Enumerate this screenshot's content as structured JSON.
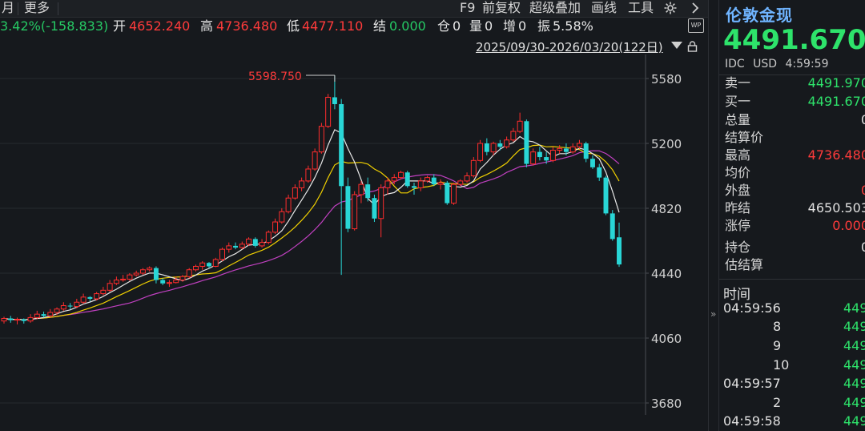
{
  "toolbar": {
    "left_item": "月",
    "more": "更多",
    "f9": "F9",
    "fuquan": "前复权",
    "overlay": "超级叠加",
    "draw": "画线",
    "tools": "工具"
  },
  "quote": {
    "change": "3.42%(-158.833)",
    "open_label": "开",
    "open": "4652.240",
    "high_label": "高",
    "high": "4736.480",
    "low_label": "低",
    "low": "4477.110",
    "settle_label": "结",
    "settle": "0.000",
    "pos_label": "仓",
    "pos": "0",
    "vol_label": "量",
    "vol": "0",
    "inc_label": "增",
    "inc": "0",
    "amp_label": "振",
    "amp": "5.58%"
  },
  "date_range": "2025/09/30-2026/03/20(122日)",
  "wp_badge": "WP",
  "chart_data": {
    "type": "candlestick",
    "period": "daily",
    "y_ticks": [
      5580,
      5200,
      4820,
      4440,
      4060,
      3680
    ],
    "ylim": [
      3680,
      5680
    ],
    "max_annotation": "5598.750",
    "colors": {
      "up": "#ff2d2d",
      "down": "#29d6d6",
      "ma5": "#e8e8e8",
      "ma10": "#f0d000",
      "ma20": "#c040c0",
      "grid": "#262a2f",
      "axis": "#4a4d52"
    },
    "candles": [
      [
        4160,
        4175,
        4145,
        4185
      ],
      [
        4175,
        4165,
        4150,
        4190
      ],
      [
        4165,
        4170,
        4140,
        4180
      ],
      [
        4170,
        4160,
        4145,
        4175
      ],
      [
        4160,
        4180,
        4150,
        4200
      ],
      [
        4180,
        4200,
        4170,
        4220
      ],
      [
        4200,
        4190,
        4180,
        4215
      ],
      [
        4190,
        4210,
        4180,
        4230
      ],
      [
        4210,
        4230,
        4195,
        4240
      ],
      [
        4230,
        4250,
        4220,
        4270
      ],
      [
        4250,
        4245,
        4230,
        4265
      ],
      [
        4245,
        4270,
        4235,
        4290
      ],
      [
        4270,
        4300,
        4260,
        4320
      ],
      [
        4300,
        4290,
        4275,
        4305
      ],
      [
        4290,
        4320,
        4280,
        4330
      ],
      [
        4320,
        4340,
        4310,
        4360
      ],
      [
        4340,
        4380,
        4330,
        4400
      ],
      [
        4380,
        4400,
        4370,
        4420
      ],
      [
        4400,
        4405,
        4390,
        4430
      ],
      [
        4405,
        4430,
        4395,
        4440
      ],
      [
        4430,
        4440,
        4420,
        4455
      ],
      [
        4440,
        4460,
        4430,
        4470
      ],
      [
        4460,
        4470,
        4450,
        4480
      ],
      [
        4470,
        4400,
        4380,
        4480
      ],
      [
        4400,
        4380,
        4370,
        4410
      ],
      [
        4380,
        4385,
        4360,
        4400
      ],
      [
        4385,
        4400,
        4380,
        4420
      ],
      [
        4400,
        4420,
        4390,
        4430
      ],
      [
        4420,
        4460,
        4410,
        4470
      ],
      [
        4460,
        4480,
        4450,
        4490
      ],
      [
        4480,
        4500,
        4460,
        4510
      ],
      [
        4500,
        4480,
        4470,
        4505
      ],
      [
        4480,
        4520,
        4475,
        4530
      ],
      [
        4520,
        4580,
        4510,
        4590
      ],
      [
        4580,
        4600,
        4560,
        4620
      ],
      [
        4600,
        4590,
        4580,
        4620
      ],
      [
        4590,
        4610,
        4580,
        4625
      ],
      [
        4610,
        4640,
        4600,
        4650
      ],
      [
        4640,
        4600,
        4590,
        4650
      ],
      [
        4600,
        4620,
        4590,
        4640
      ],
      [
        4620,
        4680,
        4610,
        4690
      ],
      [
        4680,
        4740,
        4670,
        4760
      ],
      [
        4740,
        4800,
        4730,
        4820
      ],
      [
        4800,
        4880,
        4790,
        4900
      ],
      [
        4880,
        4940,
        4870,
        4960
      ],
      [
        4940,
        4980,
        4920,
        5000
      ],
      [
        4980,
        5050,
        4970,
        5070
      ],
      [
        5050,
        5150,
        5040,
        5170
      ],
      [
        5150,
        5300,
        5140,
        5320
      ],
      [
        5300,
        5470,
        5290,
        5490
      ],
      [
        5470,
        5430,
        5400,
        5599
      ],
      [
        5430,
        4950,
        4430,
        5460
      ],
      [
        4950,
        4700,
        4680,
        5000
      ],
      [
        4700,
        4900,
        4690,
        4920
      ],
      [
        4900,
        4960,
        4850,
        4980
      ],
      [
        4960,
        4880,
        4860,
        5000
      ],
      [
        4880,
        4760,
        4740,
        4900
      ],
      [
        4760,
        4940,
        4650,
        4960
      ],
      [
        4940,
        4980,
        4900,
        5000
      ],
      [
        4980,
        5000,
        4960,
        5020
      ],
      [
        5000,
        5030,
        4990,
        5040
      ],
      [
        5030,
        4950,
        4940,
        5040
      ],
      [
        4950,
        4940,
        4900,
        4970
      ],
      [
        4940,
        4980,
        4920,
        5000
      ],
      [
        4980,
        5000,
        4970,
        5010
      ],
      [
        5000,
        4960,
        4950,
        5020
      ],
      [
        4960,
        4970,
        4930,
        4990
      ],
      [
        4970,
        4850,
        4840,
        4980
      ],
      [
        4850,
        4960,
        4840,
        4970
      ],
      [
        4960,
        4980,
        4950,
        4990
      ],
      [
        4980,
        5010,
        4970,
        5030
      ],
      [
        5010,
        5100,
        5000,
        5120
      ],
      [
        5100,
        5200,
        5090,
        5220
      ],
      [
        5200,
        5150,
        5130,
        5230
      ],
      [
        5150,
        5200,
        5130,
        5210
      ],
      [
        5200,
        5180,
        5160,
        5220
      ],
      [
        5180,
        5220,
        5170,
        5240
      ],
      [
        5220,
        5270,
        5210,
        5290
      ],
      [
        5270,
        5330,
        5260,
        5380
      ],
      [
        5330,
        5080,
        5060,
        5340
      ],
      [
        5080,
        5150,
        5070,
        5170
      ],
      [
        5150,
        5120,
        5100,
        5180
      ],
      [
        5120,
        5100,
        5080,
        5150
      ],
      [
        5100,
        5160,
        5090,
        5180
      ],
      [
        5160,
        5170,
        5140,
        5190
      ],
      [
        5170,
        5150,
        5130,
        5200
      ],
      [
        5150,
        5180,
        5140,
        5200
      ],
      [
        5180,
        5200,
        5170,
        5220
      ],
      [
        5200,
        5110,
        5090,
        5210
      ],
      [
        5110,
        5060,
        5050,
        5130
      ],
      [
        5060,
        5000,
        4980,
        5080
      ],
      [
        5000,
        4790,
        4780,
        5010
      ],
      [
        4790,
        4640,
        4630,
        4810
      ],
      [
        4650,
        4491,
        4477,
        4736
      ]
    ]
  },
  "panel": {
    "name": "伦敦金现",
    "price": "4491.670",
    "meta": [
      "IDC",
      "USD",
      "4:59:59"
    ],
    "rows": [
      {
        "label": "卖一",
        "value": "4491.970",
        "color": "#2ee36b"
      },
      {
        "label": "买一",
        "value": "4491.670",
        "color": "#2ee36b"
      },
      {
        "label": "总量",
        "value": "0",
        "color": "#e0e0e0"
      },
      {
        "label": "结算价",
        "value": "",
        "color": "#e0e0e0"
      },
      {
        "label": "最高",
        "value": "4736.480",
        "color": "#ff3b3b"
      },
      {
        "label": "均价",
        "value": "-",
        "color": "#e0e0e0"
      },
      {
        "label": "外盘",
        "value": "0",
        "color": "#ff3b3b"
      },
      {
        "label": "昨结",
        "value": "4650.503",
        "color": "#e0e0e0"
      },
      {
        "label": "涨停",
        "value": "0.000",
        "color": "#ff3b3b"
      },
      {
        "label": "持仓",
        "value": "0",
        "color": "#e0e0e0"
      },
      {
        "label": "估结算",
        "value": "",
        "color": "#e0e0e0"
      }
    ],
    "ticks_title": "时间",
    "ticks": [
      {
        "time": "04:59:56",
        "price": "449"
      },
      {
        "time": "8",
        "price": "449"
      },
      {
        "time": "9",
        "price": "449"
      },
      {
        "time": "10",
        "price": "449"
      },
      {
        "time": "04:59:57",
        "price": "449"
      },
      {
        "time": "2",
        "price": "449"
      },
      {
        "time": "04:59:58",
        "price": "449"
      }
    ]
  }
}
